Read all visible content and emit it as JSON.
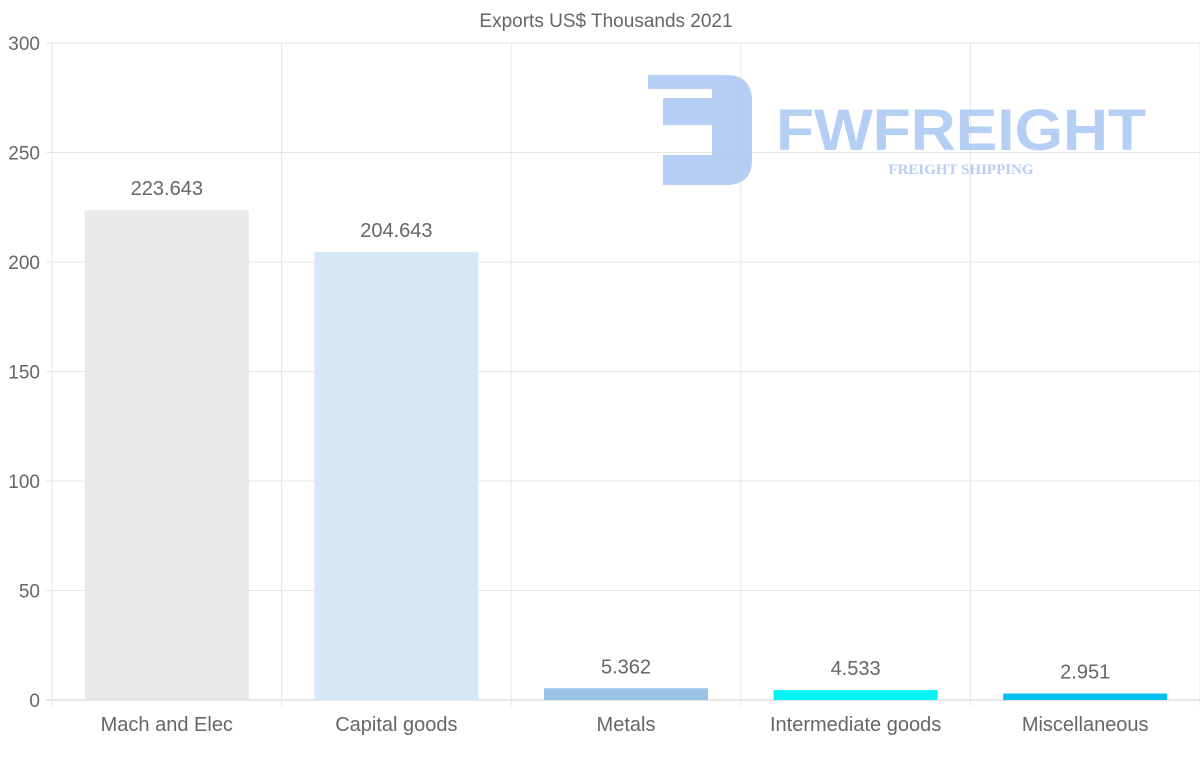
{
  "chart_data": {
    "type": "bar",
    "title": "Exports US$ Thousands 2021",
    "xlabel": "",
    "ylabel": "",
    "categories": [
      "Mach and Elec",
      "Capital goods",
      "Metals",
      "Intermediate goods",
      "Miscellaneous"
    ],
    "values": [
      223.643,
      204.643,
      5.362,
      4.533,
      2.951
    ],
    "value_labels": [
      "223.643",
      "204.643",
      "5.362",
      "4.533",
      "2.951"
    ],
    "colors": [
      "#e8e8e8",
      "#d6e7f8",
      "#9ac3e8",
      "#00f5f5",
      "#00c0f0"
    ],
    "ylim": [
      0,
      300
    ],
    "yticks": [
      "0",
      "50",
      "100",
      "150",
      "200",
      "250",
      "300"
    ],
    "ytick_values": [
      0,
      50,
      100,
      150,
      200,
      250,
      300
    ],
    "grid": true,
    "legend": "none"
  },
  "watermark": {
    "brand": "FWFREIGHT",
    "tagline": "FREIGHT SHIPPING",
    "color": "#a9c6f2"
  }
}
